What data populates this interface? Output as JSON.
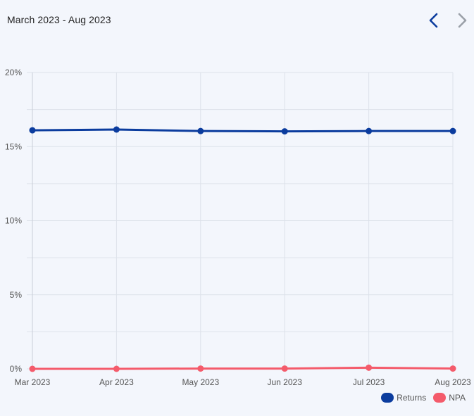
{
  "header": {
    "period_title": "March 2023 - Aug 2023",
    "prev_icon": "chevron-left-icon",
    "next_icon": "chevron-right-icon",
    "prev_color": "#0b3c9e",
    "next_color": "#9aa0a8"
  },
  "chart_data": {
    "type": "line",
    "categories": [
      "Mar 2023",
      "Apr 2023",
      "May 2023",
      "Jun 2023",
      "Jul 2023",
      "Aug 2023"
    ],
    "series": [
      {
        "name": "Returns",
        "color": "#0b3c9e",
        "values": [
          16.1,
          16.15,
          16.05,
          16.03,
          16.05,
          16.05
        ]
      },
      {
        "name": "NPA",
        "color": "#f45b6b",
        "values": [
          0.0,
          0.0,
          0.02,
          0.02,
          0.08,
          0.02
        ]
      }
    ],
    "y_ticks": [
      "0%",
      "5%",
      "10%",
      "15%",
      "20%"
    ],
    "ylim": [
      0,
      20
    ],
    "grid": true,
    "legend_position": "bottom-right"
  }
}
